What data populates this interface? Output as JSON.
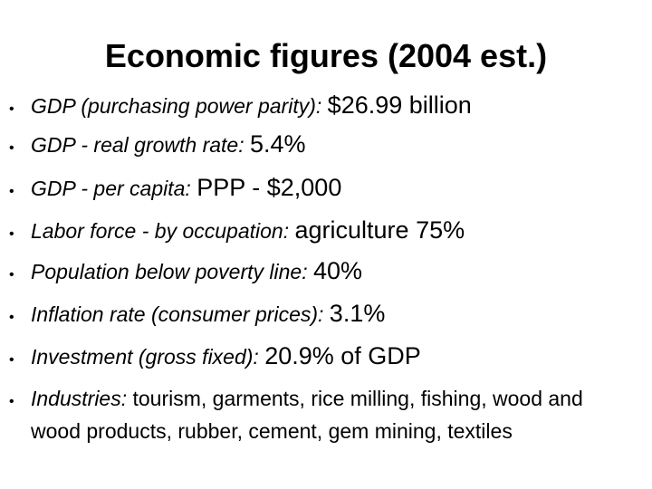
{
  "title": "Economic figures (2004 est.)",
  "bullet_icon": "bullet-dot",
  "items": [
    {
      "label": "GDP (purchasing power parity):",
      "value": "$26.99 billion"
    },
    {
      "label": "GDP - real growth rate:",
      "value": "5.4%"
    },
    {
      "label": "GDP - per capita:",
      "value": "PPP - $2,000"
    },
    {
      "label": "Labor force - by occupation:",
      "value": "agriculture 75%"
    },
    {
      "label": "Population below poverty line:",
      "value": "40%"
    },
    {
      "label": "Inflation rate (consumer prices):",
      "value": "3.1%"
    },
    {
      "label": "Investment (gross fixed):",
      "value": "20.9% of GDP"
    },
    {
      "label": "Industries:",
      "value": "tourism, garments, rice milling, fishing, wood and wood products, rubber, cement, gem mining, textiles"
    }
  ]
}
